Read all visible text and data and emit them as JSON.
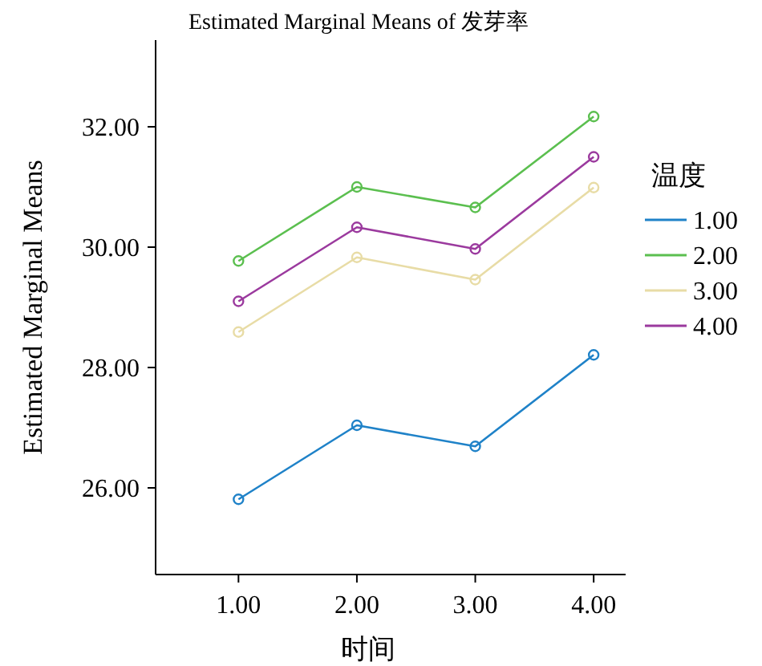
{
  "chart_data": {
    "type": "line",
    "title": "Estimated Marginal Means of 发芽率",
    "xlabel": "时间",
    "ylabel": "Estimated Marginal Means",
    "legend_title": "温度",
    "x": [
      1,
      2,
      3,
      4
    ],
    "xlim": [
      0.3,
      4.27
    ],
    "xticks": [
      {
        "value": 1,
        "label": "1.00"
      },
      {
        "value": 2,
        "label": "2.00"
      },
      {
        "value": 3,
        "label": "3.00"
      },
      {
        "value": 4,
        "label": "4.00"
      }
    ],
    "ylim": [
      24.56,
      33.44
    ],
    "yticks": [
      {
        "value": 26,
        "label": "26.00"
      },
      {
        "value": 28,
        "label": "28.00"
      },
      {
        "value": 30,
        "label": "30.00"
      },
      {
        "value": 32,
        "label": "32.00"
      }
    ],
    "grid": false,
    "legend": "right",
    "marker": "circle",
    "line_style": "solid",
    "series": [
      {
        "name": "1.00",
        "color": "#1f82c8",
        "values": [
          25.81,
          27.04,
          26.69,
          28.21
        ]
      },
      {
        "name": "2.00",
        "color": "#5bbf4f",
        "values": [
          29.77,
          31.0,
          30.66,
          32.17
        ]
      },
      {
        "name": "3.00",
        "color": "#e8dca6",
        "values": [
          28.59,
          29.83,
          29.46,
          30.99
        ]
      },
      {
        "name": "4.00",
        "color": "#9b3a9e",
        "values": [
          29.1,
          30.33,
          29.97,
          31.5
        ]
      }
    ]
  }
}
